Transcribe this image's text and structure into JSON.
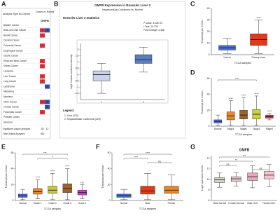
{
  "table": {
    "panel": "A",
    "title": "Analysis Type by Cancer",
    "column_header": "Cancer vs. Normal",
    "gene": "GMFB",
    "rows": [
      [
        "Bladder Cancer",
        null,
        null
      ],
      [
        "Brain and CNS Cancer",
        1,
        1
      ],
      [
        "Breast Cancer",
        1,
        null
      ],
      [
        "Cervical Cancer",
        null,
        null
      ],
      [
        "Colorectal Cancer",
        1,
        null
      ],
      [
        "Esophageal Cancer",
        null,
        null
      ],
      [
        "Gastric Cancer",
        null,
        null
      ],
      [
        "Head and Neck Cancer",
        1,
        null
      ],
      [
        "Kidney Cancer",
        1,
        null
      ],
      [
        "Leukemia",
        null,
        null
      ],
      [
        "Liver Cancer",
        1,
        null
      ],
      [
        "Lung Cancer",
        1,
        null
      ],
      [
        "Lymphoma",
        null,
        2
      ],
      [
        "Melanoma",
        null,
        null
      ],
      [
        "Myeloma",
        null,
        null
      ],
      [
        "Other Cancer",
        10,
        3
      ],
      [
        "Ovarian Cancer",
        null,
        1
      ],
      [
        "Pancreatic Cancer",
        1,
        null
      ],
      [
        "Prostate Cancer",
        null,
        null
      ],
      [
        "Sarcoma",
        null,
        null
      ]
    ],
    "summary": [
      [
        "Significant Unique Analyses",
        35,
        12
      ],
      [
        "Total Unique Analyses",
        392,
        null
      ]
    ],
    "up_color": "#e0303a",
    "down_color": "#2f4fb8"
  },
  "chart_data": [
    {
      "type": "box",
      "panel": "B",
      "title": "GMFB Expression in Roessler Liver 2",
      "subtitle": "Hepatocellular Carcinoma vs. Normal",
      "stats_title": "Roessler Liver 2 Statistics",
      "stats": [
        "P-value: 3.42E-91",
        "t-Test: 23.733",
        "Fold Change: 3.456"
      ],
      "ylabel": "log2 median-centered intensity",
      "categories": [
        "1",
        "2"
      ],
      "boxes": [
        [
          -1.5,
          -0.5,
          0,
          0.3,
          0.9
        ],
        [
          0.2,
          0.9,
          1.2,
          1.6,
          2.2
        ]
      ],
      "colors": [
        "#c8d3e6",
        "#5b7fbd"
      ],
      "ylim": [
        -2,
        2.5
      ],
      "yticks": [
        -1.5,
        -1,
        -0.5,
        0,
        0.5,
        1,
        1.5,
        2
      ],
      "legend_title": "Legend",
      "legend": [
        "1. Liver (220)",
        "2. Hepatocellular Carcinoma (225)"
      ]
    },
    {
      "type": "box",
      "panel": "C",
      "ylabel": "Transcript per million",
      "xlabel": "TCGA samples",
      "categories": [
        "Normal",
        "Primary tumor"
      ],
      "boxes": [
        [
          1,
          4,
          6,
          8,
          14
        ],
        [
          1,
          8,
          13,
          18,
          30
        ]
      ],
      "colors": [
        "#4a6fd6",
        "#e03a1e"
      ],
      "sig": [
        null,
        "****"
      ],
      "ylim": [
        0,
        40
      ],
      "yticks": [
        0,
        10,
        20,
        30,
        40
      ]
    },
    {
      "type": "box",
      "panel": "D",
      "ylabel": "Transcript per million",
      "xlabel": "TCGA samples",
      "categories": [
        "Normal",
        "Stage1",
        "Stage2",
        "Stage3",
        "Stage4"
      ],
      "boxes": [
        [
          1,
          4,
          6,
          8,
          14
        ],
        [
          1,
          8,
          13,
          18,
          32
        ],
        [
          1,
          9,
          14,
          20,
          36
        ],
        [
          1,
          9,
          15,
          21,
          38
        ],
        [
          8,
          10,
          12,
          14,
          16
        ]
      ],
      "colors": [
        "#4a6fd6",
        "#e8862a",
        "#a0622d",
        "#c8d43a",
        "#e03a1e"
      ],
      "sig": [
        null,
        "****",
        "****",
        "****",
        "****"
      ],
      "brackets": [
        {
          "text": "****",
          "from": "Normal",
          "to": "Stage3"
        }
      ],
      "ylim": [
        0,
        60
      ],
      "yticks": [
        0,
        20,
        40,
        60
      ]
    },
    {
      "type": "box",
      "panel": "E",
      "ylabel": "Transcript per million",
      "xlabel": "TCGA samples",
      "categories": [
        "Normal",
        "Grade 1",
        "Grade 2",
        "Grade 3",
        "Grade 4"
      ],
      "boxes": [
        [
          1,
          4,
          6,
          8,
          14
        ],
        [
          2,
          8,
          11,
          15,
          26
        ],
        [
          1,
          9,
          13,
          18,
          34
        ],
        [
          1,
          10,
          15,
          21,
          40
        ],
        [
          2,
          7,
          10,
          13,
          20
        ]
      ],
      "colors": [
        "#4a6fd6",
        "#e8862a",
        "#c8c83a",
        "#a0622d",
        "#d63ad0"
      ],
      "sig": [
        null,
        "****",
        "****",
        "****",
        "ns"
      ],
      "brackets": [
        {
          "text": "***",
          "from": "Normal",
          "to": "Grade 3"
        },
        {
          "text": "*",
          "from": "Grade 1",
          "to": "Grade 3"
        }
      ],
      "ylim": [
        0,
        60
      ],
      "yticks": [
        0,
        20,
        40,
        60
      ]
    },
    {
      "type": "box",
      "panel": "F",
      "ylabel": "Transcript per million",
      "xlabel": "TCGA samples",
      "categories": [
        "Normal",
        "Male",
        "Female"
      ],
      "boxes": [
        [
          1,
          4,
          6,
          8,
          14
        ],
        [
          1,
          8,
          12,
          18,
          34
        ],
        [
          1,
          9,
          13,
          18,
          32
        ]
      ],
      "colors": [
        "#4a6fd6",
        "#e03a1e",
        "#e8862a"
      ],
      "brackets": [
        {
          "text": "****",
          "from": "Normal",
          "to": "Female"
        },
        {
          "text": "****",
          "from": "Normal",
          "to": "Male"
        },
        {
          "text": "ns",
          "from": "Male",
          "to": "Female"
        }
      ],
      "ylim": [
        0,
        60
      ],
      "yticks": [
        0,
        20,
        40,
        60
      ]
    },
    {
      "type": "box",
      "panel": "G",
      "title": "GMFB",
      "ylabel": "Log2 expression levels",
      "categories": [
        "Male-Normal",
        "Female-Normal",
        "Male-HCC",
        "Female-HCC"
      ],
      "boxes": [
        [
          8.5,
          9.4,
          9.9,
          10.3,
          11.2
        ],
        [
          8.7,
          9.6,
          10.1,
          10.5,
          11.3
        ],
        [
          8.4,
          9.8,
          10.5,
          11.2,
          12.6
        ],
        [
          8.6,
          10.1,
          10.8,
          11.5,
          12.8
        ]
      ],
      "colors": [
        "#cfd9c3",
        "#e8c8d0",
        "#f0a8b8",
        "#f6c6cc"
      ],
      "brackets": [
        {
          "text": "***",
          "from": "Male-Normal",
          "to": "Female-HCC"
        },
        {
          "text": "**",
          "from": "Male-Normal",
          "to": "Male-HCC"
        },
        {
          "text": "ns",
          "from": "Male-Normal",
          "to": "Female-Normal"
        },
        {
          "text": "ns",
          "from": "Male-HCC",
          "to": "Female-HCC"
        }
      ],
      "ylim": [
        6,
        14.5
      ],
      "yticks": [
        6,
        8,
        10,
        12,
        14
      ]
    }
  ]
}
